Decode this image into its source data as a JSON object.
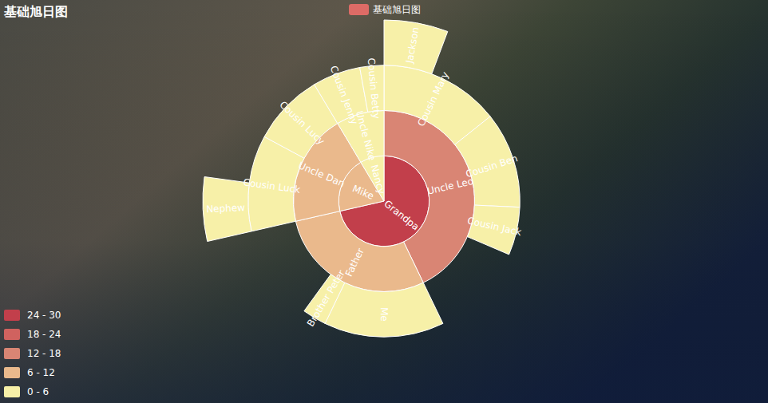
{
  "chart_data": {
    "type": "sunburst",
    "title": "基础旭日图",
    "legend": "top",
    "series": [
      {
        "name": "基础旭日图",
        "color": "#dd6b66",
        "data": [
          {
            "name": "Grandpa",
            "value": 25,
            "children": [
              {
                "name": "Uncle Leo",
                "value": 15,
                "children": [
                  {
                    "name": "Cousin Mary",
                    "value": 5,
                    "children": [
                      {
                        "name": "Jackson",
                        "value": 2
                      }
                    ]
                  },
                  {
                    "name": "Cousin Ben",
                    "value": 4
                  },
                  {
                    "name": "Cousin Jack",
                    "value": 2
                  }
                ]
              },
              {
                "name": "Father",
                "value": 10,
                "children": [
                  {
                    "name": "Me",
                    "value": 5
                  },
                  {
                    "name": "Brother Peter",
                    "value": 1
                  }
                ]
              }
            ]
          },
          {
            "name": "Mike",
            "value": 7,
            "children": [
              {
                "name": "Uncle Dan",
                "value": 7,
                "children": [
                  {
                    "name": "Cousin Luck",
                    "value": 4,
                    "children": [
                      {
                        "name": "Nephew",
                        "value": 2
                      }
                    ]
                  },
                  {
                    "name": "Cousin Lucy",
                    "value": 3
                  }
                ]
              }
            ]
          },
          {
            "name": "Nancy",
            "value": 3,
            "children": [
              {
                "name": "Uncle Nike",
                "value": 3,
                "children": [
                  {
                    "name": "Cousin Jenny",
                    "value": 2
                  },
                  {
                    "name": "Cousin Betty",
                    "value": 1
                  }
                ]
              }
            ]
          }
        ]
      }
    ],
    "color_pieces": [
      {
        "min": 24,
        "max": 30,
        "label": "24 - 30",
        "color": "#c23f4b"
      },
      {
        "min": 18,
        "max": 24,
        "label": "18 - 24",
        "color": "#d0625f"
      },
      {
        "min": 12,
        "max": 18,
        "label": "12 - 18",
        "color": "#d98574"
      },
      {
        "min": 6,
        "max": 12,
        "label": "6 - 12",
        "color": "#eab98c"
      },
      {
        "min": 0,
        "max": 6,
        "label": "0 - 6",
        "color": "#f7f0a8"
      }
    ]
  }
}
